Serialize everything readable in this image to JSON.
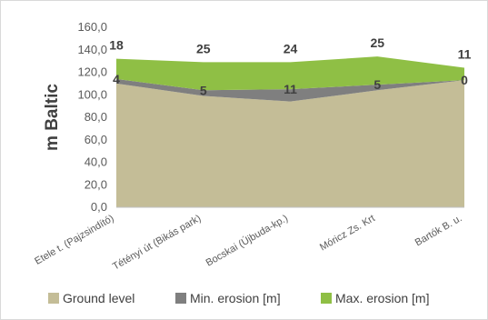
{
  "chart_data": {
    "type": "stacked-area",
    "y_label": "m Baltic",
    "categories": [
      "Etele t. (Pajzsindító)",
      "Tétényi út (Bikás park)",
      "Bocskai (Újbuda-kp.)",
      "Móricz Zs. Krt",
      "Bartók B. u."
    ],
    "series": [
      {
        "name": "Ground level",
        "color": "#c4bd97",
        "values": [
          110,
          99,
          94,
          104,
          113
        ]
      },
      {
        "name": "Min. erosion [m]",
        "color": "#7f7f7f",
        "values": [
          4,
          5,
          11,
          5,
          0
        ]
      },
      {
        "name": "Max. erosion [m]",
        "color": "#8fbf45",
        "values": [
          18,
          25,
          24,
          25,
          11
        ]
      }
    ],
    "ylim": [
      0,
      160
    ],
    "yticks": [
      {
        "value": 0,
        "label": "0,0"
      },
      {
        "value": 20,
        "label": "20,0"
      },
      {
        "value": 40,
        "label": "40,0"
      },
      {
        "value": 60,
        "label": "60,0"
      },
      {
        "value": 80,
        "label": "80,0"
      },
      {
        "value": 100,
        "label": "100,0"
      },
      {
        "value": 120,
        "label": "120,0"
      },
      {
        "value": 140,
        "label": "140,0"
      },
      {
        "value": 160,
        "label": "160,0"
      }
    ],
    "data_labels": true,
    "legend": "bottom"
  }
}
